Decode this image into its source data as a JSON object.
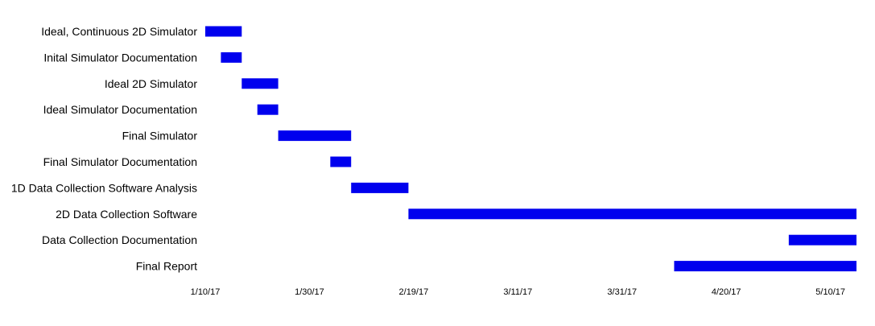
{
  "chart_data": {
    "type": "bar",
    "orientation": "horizontal",
    "title": "",
    "xlabel": "",
    "ylabel": "",
    "grid": false,
    "bar_color": "#0000ee",
    "x_ticks": [
      "1/10/17",
      "1/30/17",
      "2/19/17",
      "3/11/17",
      "3/31/17",
      "4/20/17",
      "5/10/17"
    ],
    "xlim": [
      "2017-01-10",
      "2017-05-15"
    ],
    "tasks": [
      {
        "label": "Ideal, Continuous 2D Simulator",
        "start": "2017-01-10",
        "end": "2017-01-17"
      },
      {
        "label": "Inital Simulator Documentation",
        "start": "2017-01-13",
        "end": "2017-01-17"
      },
      {
        "label": "Ideal 2D Simulator",
        "start": "2017-01-17",
        "end": "2017-01-24"
      },
      {
        "label": "Ideal Simulator Documentation",
        "start": "2017-01-20",
        "end": "2017-01-24"
      },
      {
        "label": "Final Simulator",
        "start": "2017-01-24",
        "end": "2017-02-07"
      },
      {
        "label": "Final Simulator Documentation",
        "start": "2017-02-03",
        "end": "2017-02-07"
      },
      {
        "label": "1D Data Collection Software Analysis",
        "start": "2017-02-07",
        "end": "2017-02-18"
      },
      {
        "label": "2D Data Collection Software",
        "start": "2017-02-18",
        "end": "2017-05-15"
      },
      {
        "label": "Data Collection Documentation",
        "start": "2017-05-02",
        "end": "2017-05-15"
      },
      {
        "label": "Final Report",
        "start": "2017-04-10",
        "end": "2017-05-15"
      }
    ]
  }
}
